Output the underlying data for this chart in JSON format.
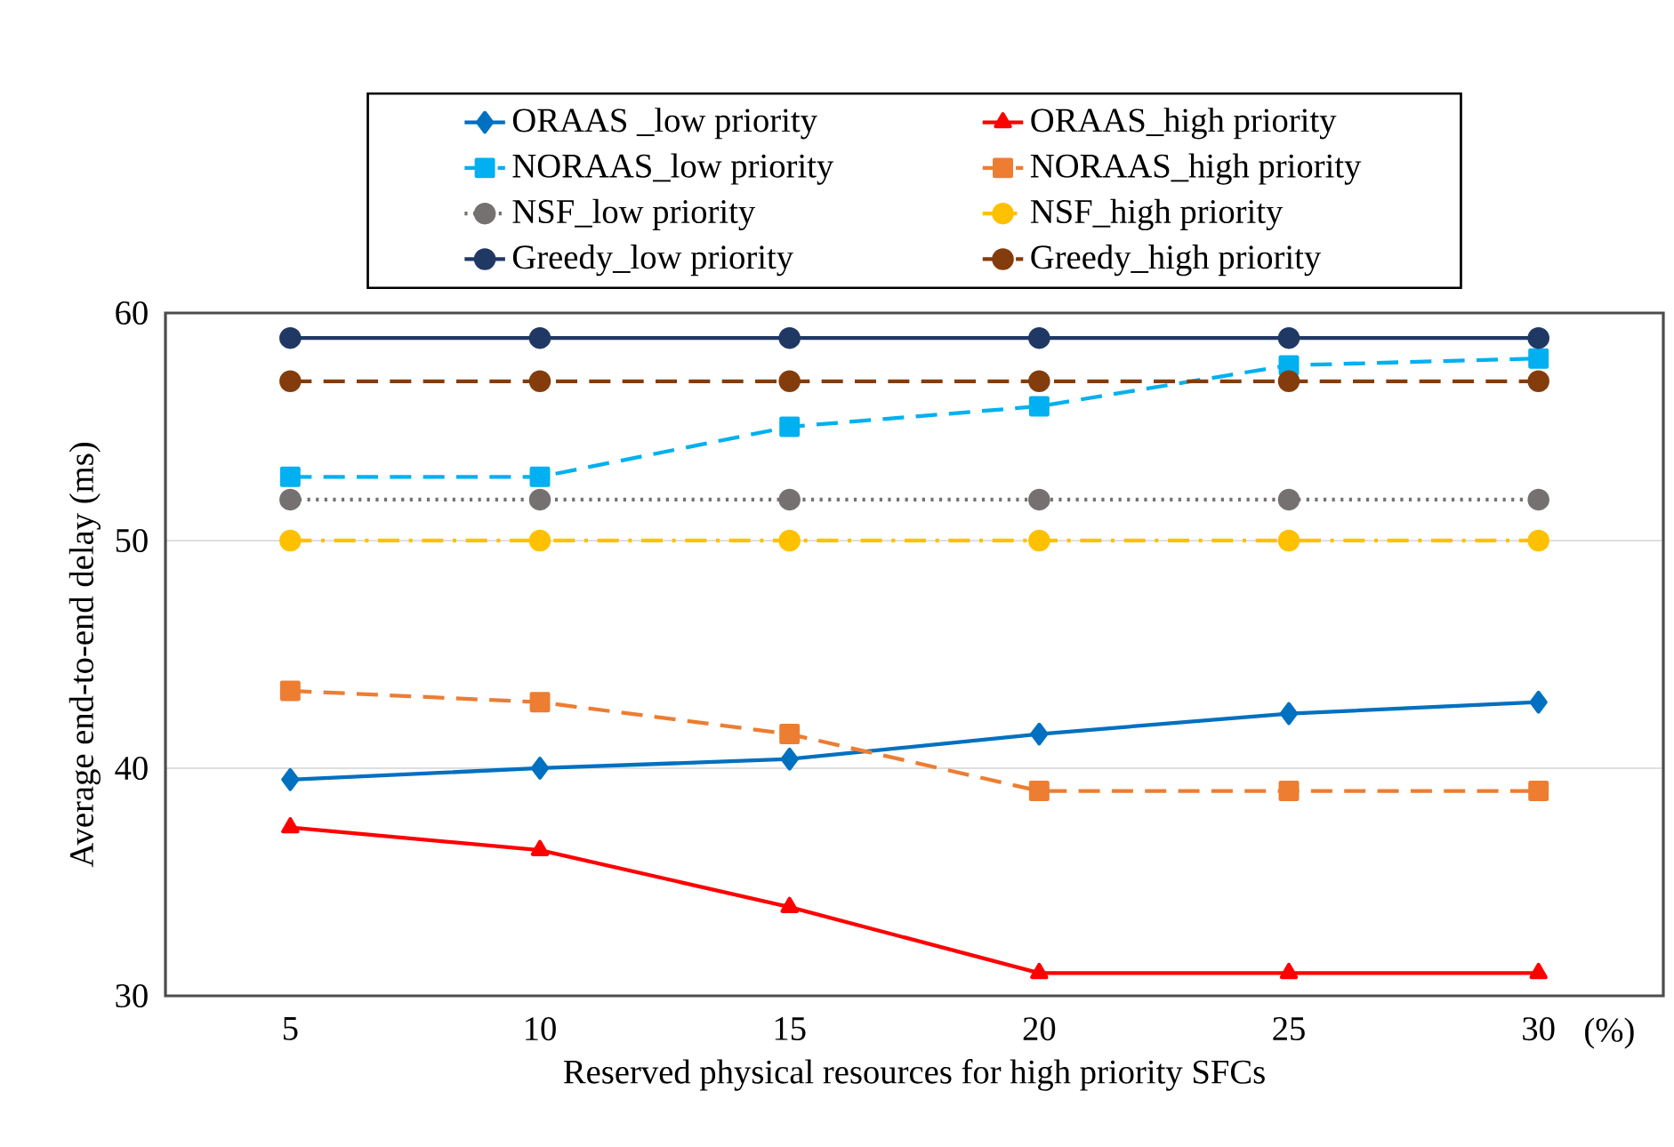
{
  "chart_data": {
    "type": "line",
    "xlabel": "Reserved physical resources for high priority SFCs",
    "ylabel": "Average end-to-end delay (ms)",
    "annotations": [
      "(%)"
    ],
    "categories": [
      "5",
      "10",
      "15",
      "20",
      "25",
      "30"
    ],
    "series": [
      {
        "name": "ORAAS _low priority",
        "color": "#0070c0",
        "marker": "diamond",
        "line_style": "solid",
        "values": [
          39.5,
          40,
          40.4,
          41.5,
          42.4,
          42.9
        ]
      },
      {
        "name": "ORAAS_high priority",
        "color": "#ff0000",
        "marker": "triangle",
        "line_style": "solid",
        "values": [
          37.4,
          36.4,
          33.9,
          31,
          31,
          31
        ]
      },
      {
        "name": "NORAAS_low priority",
        "color": "#00b0f0",
        "marker": "square",
        "line_style": "dashed",
        "values": [
          52.8,
          52.8,
          55,
          55.9,
          57.7,
          58
        ]
      },
      {
        "name": "NORAAS_high priority",
        "color": "#ed7d31",
        "marker": "square",
        "line_style": "dashed",
        "values": [
          43.4,
          42.9,
          41.5,
          39,
          39,
          39
        ]
      },
      {
        "name": "NSF_low priority",
        "color": "#767171",
        "marker": "circle",
        "line_style": "dotted",
        "values": [
          51.8,
          51.8,
          51.8,
          51.8,
          51.8,
          51.8
        ]
      },
      {
        "name": "NSF_high priority",
        "color": "#ffc000",
        "marker": "circle",
        "line_style": "dashdot",
        "values": [
          50,
          50,
          50,
          50,
          50,
          50
        ]
      },
      {
        "name": "Greedy_low priority",
        "color": "#203864",
        "marker": "circle",
        "line_style": "solid",
        "values": [
          58.9,
          58.9,
          58.9,
          58.9,
          58.9,
          58.9
        ]
      },
      {
        "name": "Greedy_high priority",
        "color": "#843c0c",
        "marker": "circle",
        "line_style": "dashed",
        "values": [
          57,
          57,
          57,
          57,
          57,
          57
        ]
      }
    ],
    "ylim": [
      30,
      60
    ],
    "yticks": [
      30,
      40,
      50,
      60
    ],
    "grid": "y",
    "legend": "top"
  }
}
